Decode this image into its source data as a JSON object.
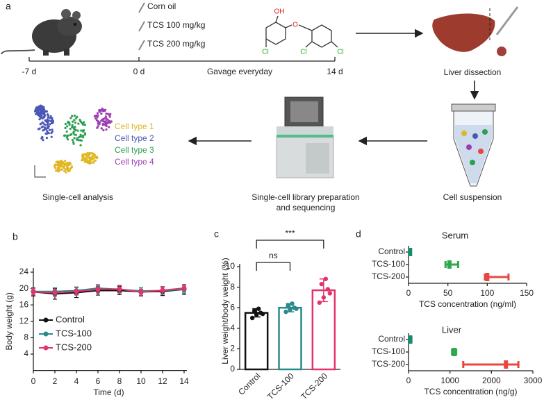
{
  "diagram": {
    "label": "a",
    "treatments": [
      "Corn oil",
      "TCS 100 mg/kg",
      "TCS 200 mg/kg"
    ],
    "molecule": {
      "oh": "OH",
      "o": "O",
      "cl": [
        "Cl",
        "Cl",
        "Cl"
      ]
    },
    "timeline": [
      "-7 d",
      "0 d",
      "14 d"
    ],
    "gavage": "Gavage everyday",
    "steps": [
      "Liver dissection",
      "Cell suspension",
      [
        "Single-cell library preparation",
        "and sequencing"
      ],
      "Single-cell analysis"
    ],
    "cell_types": [
      {
        "name": "Cell type 1",
        "color": "#e0b622"
      },
      {
        "name": "Cell type 2",
        "color": "#4a58b5"
      },
      {
        "name": "Cell type 3",
        "color": "#2ba04e"
      },
      {
        "name": "Cell type 4",
        "color": "#9b3fb0"
      }
    ]
  },
  "chart_data": [
    {
      "type": "line",
      "panel": "b",
      "xlabel": "Time (d)",
      "ylabel": "Body weight (g)",
      "x": [
        0,
        2,
        4,
        6,
        8,
        10,
        12,
        14
      ],
      "xlim": [
        0,
        14
      ],
      "xticks": [
        0,
        2,
        4,
        6,
        8,
        10,
        12,
        14
      ],
      "ylim": [
        0,
        24
      ],
      "yticks": [
        4,
        8,
        12,
        16,
        20,
        24
      ],
      "series": [
        {
          "name": "Control",
          "color": "#111111",
          "values": [
            19.2,
            18.7,
            19.0,
            19.5,
            19.5,
            19.2,
            19.3,
            19.8
          ],
          "errors": [
            1.0,
            1.3,
            1.2,
            1.1,
            1.0,
            1.0,
            1.0,
            1.2
          ]
        },
        {
          "name": "TCS-100",
          "color": "#2a8a8a",
          "values": [
            19.3,
            19.3,
            19.5,
            20.1,
            19.8,
            19.4,
            19.5,
            19.8
          ],
          "errors": [
            0.8,
            0.9,
            0.9,
            0.9,
            0.9,
            0.8,
            0.9,
            0.9
          ]
        },
        {
          "name": "TCS-200",
          "color": "#e2336b",
          "values": [
            19.2,
            19.0,
            19.3,
            19.8,
            19.9,
            19.1,
            19.6,
            20.1
          ],
          "errors": [
            0.8,
            0.9,
            0.9,
            0.9,
            0.9,
            0.8,
            0.9,
            0.9
          ]
        }
      ]
    },
    {
      "type": "bar",
      "panel": "c",
      "ylabel": "Liver weight/body weight (%)",
      "categories": [
        "Control",
        "TCS-100",
        "TCS-200"
      ],
      "values": [
        5.5,
        6.0,
        7.7
      ],
      "errors": [
        0.4,
        0.4,
        1.1
      ],
      "colors": [
        "#111111",
        "#2a8a8a",
        "#e2336b"
      ],
      "points": [
        [
          5.0,
          5.3,
          5.5,
          5.7,
          5.9,
          5.4
        ],
        [
          5.6,
          5.8,
          6.0,
          6.2,
          6.4,
          5.9
        ],
        [
          6.5,
          7.0,
          7.8,
          8.3,
          8.8,
          7.4
        ]
      ],
      "ylim": [
        0,
        10
      ],
      "yticks": [
        0,
        2,
        4,
        6,
        8,
        10
      ],
      "annotations": [
        "ns",
        "***"
      ]
    },
    {
      "type": "range",
      "panel": "d",
      "title": "Serum",
      "xlabel": "TCS concentration (ng/ml)",
      "categories": [
        "Control",
        "TCS-100",
        "TCS-200"
      ],
      "values": [
        2,
        52,
        100
      ],
      "low": [
        1,
        47,
        97
      ],
      "high": [
        3,
        63,
        127
      ],
      "colors": [
        "#1a8a6e",
        "#2ea84a",
        "#e8473f"
      ],
      "xlim": [
        0,
        150
      ],
      "xticks": [
        0,
        50,
        100,
        150
      ]
    },
    {
      "type": "range",
      "title": "Liver",
      "xlabel": "TCS concentration (ng/g)",
      "categories": [
        "Control",
        "TCS-100",
        "TCS-200"
      ],
      "values": [
        40,
        1100,
        2350
      ],
      "low": [
        10,
        1050,
        1320
      ],
      "high": [
        70,
        1150,
        2650
      ],
      "colors": [
        "#1a8a6e",
        "#2ea84a",
        "#e8473f"
      ],
      "xlim": [
        0,
        3000
      ],
      "xticks": [
        0,
        1000,
        2000,
        3000
      ]
    }
  ]
}
